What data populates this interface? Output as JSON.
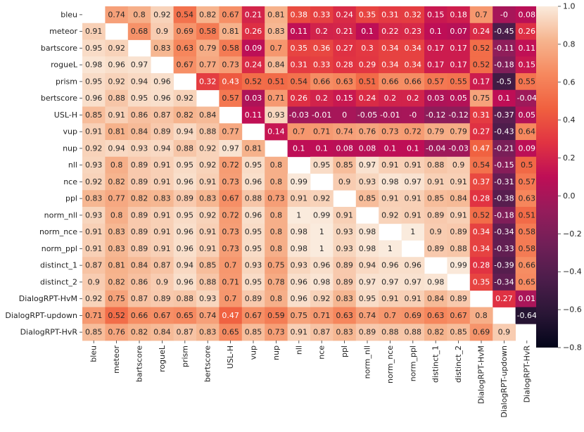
{
  "chart_data": {
    "type": "heatmap",
    "title": "",
    "xlabel": "",
    "ylabel": "",
    "labels": [
      "bleu",
      "meteor",
      "bartscore",
      "rogueL",
      "prism",
      "bertscore",
      "USL-H",
      "vup",
      "nup",
      "nll",
      "nce",
      "ppl",
      "norm_nll",
      "norm_nce",
      "norm_ppl",
      "distinct_1",
      "distinct_2",
      "DialogRPT-HvM",
      "DialogRPT-updown",
      "DialogRPT-HvR"
    ],
    "matrix": [
      [
        null,
        0.74,
        0.8,
        0.92,
        0.54,
        0.82,
        0.67,
        0.21,
        0.81,
        0.38,
        0.33,
        0.24,
        0.35,
        0.31,
        0.32,
        0.15,
        0.18,
        0.7,
        0,
        0.08
      ],
      [
        0.91,
        null,
        0.68,
        0.9,
        0.69,
        0.58,
        0.81,
        0.26,
        0.83,
        0.11,
        0.2,
        0.21,
        0.1,
        0.22,
        0.23,
        0.1,
        0.07,
        0.24,
        -0.45,
        0.26
      ],
      [
        0.95,
        0.92,
        null,
        0.83,
        0.63,
        0.79,
        0.58,
        0.09,
        0.7,
        0.35,
        0.36,
        0.27,
        0.3,
        0.34,
        0.34,
        0.17,
        0.17,
        0.52,
        -0.11,
        0.11
      ],
      [
        0.98,
        0.96,
        0.97,
        null,
        0.67,
        0.77,
        0.73,
        0.24,
        0.84,
        0.31,
        0.33,
        0.28,
        0.29,
        0.34,
        0.34,
        0.17,
        0.17,
        0.52,
        -0.18,
        0.15
      ],
      [
        0.95,
        0.92,
        0.94,
        0.96,
        null,
        0.32,
        0.43,
        0.52,
        0.51,
        0.54,
        0.66,
        0.63,
        0.51,
        0.66,
        0.66,
        0.57,
        0.55,
        0.17,
        -0.5,
        0.55
      ],
      [
        0.96,
        0.88,
        0.95,
        0.96,
        0.92,
        null,
        0.57,
        0.03,
        0.71,
        0.26,
        0.2,
        0.15,
        0.24,
        0.2,
        0.2,
        0.03,
        0.05,
        0.75,
        0.1,
        -0.04
      ],
      [
        0.85,
        0.91,
        0.86,
        0.87,
        0.82,
        0.84,
        null,
        0.11,
        0.93,
        -0.03,
        -0.01,
        0,
        -0.05,
        -0.01,
        0,
        -0.12,
        -0.12,
        0.31,
        -0.37,
        0.05
      ],
      [
        0.91,
        0.81,
        0.84,
        0.89,
        0.94,
        0.88,
        0.77,
        null,
        0.14,
        0.7,
        0.71,
        0.74,
        0.76,
        0.73,
        0.72,
        0.79,
        0.79,
        0.27,
        -0.43,
        0.64
      ],
      [
        0.92,
        0.94,
        0.93,
        0.94,
        0.88,
        0.92,
        0.97,
        0.81,
        null,
        0.1,
        0.1,
        0.08,
        0.08,
        0.1,
        0.1,
        -0.04,
        -0.03,
        0.47,
        -0.21,
        0.09
      ],
      [
        0.93,
        0.8,
        0.89,
        0.91,
        0.95,
        0.92,
        0.72,
        0.95,
        0.8,
        null,
        0.95,
        0.85,
        0.97,
        0.91,
        0.91,
        0.88,
        0.9,
        0.54,
        -0.15,
        0.5
      ],
      [
        0.92,
        0.82,
        0.89,
        0.91,
        0.96,
        0.91,
        0.73,
        0.96,
        0.8,
        0.99,
        null,
        0.9,
        0.93,
        0.98,
        0.97,
        0.91,
        0.91,
        0.37,
        -0.31,
        0.57
      ],
      [
        0.83,
        0.77,
        0.82,
        0.83,
        0.89,
        0.83,
        0.67,
        0.88,
        0.73,
        0.91,
        0.92,
        null,
        0.85,
        0.91,
        0.91,
        0.85,
        0.84,
        0.28,
        -0.38,
        0.63
      ],
      [
        0.93,
        0.8,
        0.89,
        0.91,
        0.95,
        0.92,
        0.72,
        0.96,
        0.8,
        1,
        0.99,
        0.91,
        null,
        0.92,
        0.91,
        0.89,
        0.91,
        0.52,
        -0.18,
        0.51
      ],
      [
        0.91,
        0.83,
        0.89,
        0.91,
        0.96,
        0.91,
        0.73,
        0.95,
        0.8,
        0.98,
        1,
        0.93,
        0.98,
        null,
        1,
        0.9,
        0.89,
        0.34,
        -0.34,
        0.58
      ],
      [
        0.91,
        0.83,
        0.89,
        0.91,
        0.96,
        0.91,
        0.73,
        0.95,
        0.8,
        0.98,
        1,
        0.93,
        0.98,
        1,
        null,
        0.89,
        0.88,
        0.34,
        -0.33,
        0.58
      ],
      [
        0.87,
        0.81,
        0.84,
        0.87,
        0.94,
        0.85,
        0.7,
        0.93,
        0.75,
        0.93,
        0.96,
        0.89,
        0.94,
        0.96,
        0.96,
        null,
        0.99,
        0.28,
        -0.39,
        0.66
      ],
      [
        0.9,
        0.82,
        0.86,
        0.9,
        0.96,
        0.88,
        0.71,
        0.95,
        0.78,
        0.96,
        0.98,
        0.89,
        0.97,
        0.97,
        0.97,
        0.98,
        null,
        0.35,
        -0.34,
        0.65
      ],
      [
        0.92,
        0.75,
        0.87,
        0.89,
        0.88,
        0.93,
        0.7,
        0.89,
        0.8,
        0.96,
        0.92,
        0.83,
        0.95,
        0.91,
        0.91,
        0.84,
        0.89,
        null,
        0.27,
        0.01
      ],
      [
        0.71,
        0.52,
        0.66,
        0.67,
        0.65,
        0.74,
        0.47,
        0.67,
        0.59,
        0.75,
        0.71,
        0.63,
        0.74,
        0.7,
        0.69,
        0.63,
        0.67,
        0.8,
        null,
        -0.64
      ],
      [
        0.85,
        0.76,
        0.82,
        0.84,
        0.87,
        0.83,
        0.65,
        0.85,
        0.73,
        0.91,
        0.87,
        0.83,
        0.89,
        0.88,
        0.88,
        0.82,
        0.85,
        0.69,
        0.9,
        null
      ]
    ],
    "value_labels": [
      [
        null,
        "0.74",
        "0.8",
        "0.92",
        "0.54",
        "0.82",
        "0.67",
        "0.21",
        "0.81",
        "0.38",
        "0.33",
        "0.24",
        "0.35",
        "0.31",
        "0.32",
        "0.15",
        "0.18",
        "0.7",
        "-0",
        "0.08"
      ],
      [
        "0.91",
        null,
        "0.68",
        "0.9",
        "0.69",
        "0.58",
        "0.81",
        "0.26",
        "0.83",
        "0.11",
        "0.2",
        "0.21",
        "0.1",
        "0.22",
        "0.23",
        "0.1",
        "0.07",
        "0.24",
        "-0.45",
        "0.26"
      ],
      [
        "0.95",
        "0.92",
        null,
        "0.83",
        "0.63",
        "0.79",
        "0.58",
        "0.09",
        "0.7",
        "0.35",
        "0.36",
        "0.27",
        "0.3",
        "0.34",
        "0.34",
        "0.17",
        "0.17",
        "0.52",
        "-0.11",
        "0.11"
      ],
      [
        "0.98",
        "0.96",
        "0.97",
        null,
        "0.67",
        "0.77",
        "0.73",
        "0.24",
        "0.84",
        "0.31",
        "0.33",
        "0.28",
        "0.29",
        "0.34",
        "0.34",
        "0.17",
        "0.17",
        "0.52",
        "-0.18",
        "0.15"
      ],
      [
        "0.95",
        "0.92",
        "0.94",
        "0.96",
        null,
        "0.32",
        "0.43",
        "0.52",
        "0.51",
        "0.54",
        "0.66",
        "0.63",
        "0.51",
        "0.66",
        "0.66",
        "0.57",
        "0.55",
        "0.17",
        "-0.5",
        "0.55"
      ],
      [
        "0.96",
        "0.88",
        "0.95",
        "0.96",
        "0.92",
        null,
        "0.57",
        "0.03",
        "0.71",
        "0.26",
        "0.2",
        "0.15",
        "0.24",
        "0.2",
        "0.2",
        "0.03",
        "0.05",
        "0.75",
        "0.1",
        "-0.04"
      ],
      [
        "0.85",
        "0.91",
        "0.86",
        "0.87",
        "0.82",
        "0.84",
        null,
        "0.11",
        "0.93",
        "-0.03",
        "-0.01",
        "0",
        "-0.05",
        "-0.01",
        "-0",
        "-0.12",
        "-0.12",
        "0.31",
        "-0.37",
        "0.05"
      ],
      [
        "0.91",
        "0.81",
        "0.84",
        "0.89",
        "0.94",
        "0.88",
        "0.77",
        null,
        "0.14",
        "0.7",
        "0.71",
        "0.74",
        "0.76",
        "0.73",
        "0.72",
        "0.79",
        "0.79",
        "0.27",
        "-0.43",
        "0.64"
      ],
      [
        "0.92",
        "0.94",
        "0.93",
        "0.94",
        "0.88",
        "0.92",
        "0.97",
        "0.81",
        null,
        "0.1",
        "0.1",
        "0.08",
        "0.08",
        "0.1",
        "0.1",
        "-0.04",
        "-0.03",
        "0.47",
        "-0.21",
        "0.09"
      ],
      [
        "0.93",
        "0.8",
        "0.89",
        "0.91",
        "0.95",
        "0.92",
        "0.72",
        "0.95",
        "0.8",
        null,
        "0.95",
        "0.85",
        "0.97",
        "0.91",
        "0.91",
        "0.88",
        "0.9",
        "0.54",
        "-0.15",
        "0.5"
      ],
      [
        "0.92",
        "0.82",
        "0.89",
        "0.91",
        "0.96",
        "0.91",
        "0.73",
        "0.96",
        "0.8",
        "0.99",
        null,
        "0.9",
        "0.93",
        "0.98",
        "0.97",
        "0.91",
        "0.91",
        "0.37",
        "-0.31",
        "0.57"
      ],
      [
        "0.83",
        "0.77",
        "0.82",
        "0.83",
        "0.89",
        "0.83",
        "0.67",
        "0.88",
        "0.73",
        "0.91",
        "0.92",
        null,
        "0.85",
        "0.91",
        "0.91",
        "0.85",
        "0.84",
        "0.28",
        "-0.38",
        "0.63"
      ],
      [
        "0.93",
        "0.8",
        "0.89",
        "0.91",
        "0.95",
        "0.92",
        "0.72",
        "0.96",
        "0.8",
        "1",
        "0.99",
        "0.91",
        null,
        "0.92",
        "0.91",
        "0.89",
        "0.91",
        "0.52",
        "-0.18",
        "0.51"
      ],
      [
        "0.91",
        "0.83",
        "0.89",
        "0.91",
        "0.96",
        "0.91",
        "0.73",
        "0.95",
        "0.8",
        "0.98",
        "1",
        "0.93",
        "0.98",
        null,
        "1",
        "0.9",
        "0.89",
        "0.34",
        "-0.34",
        "0.58"
      ],
      [
        "0.91",
        "0.83",
        "0.89",
        "0.91",
        "0.96",
        "0.91",
        "0.73",
        "0.95",
        "0.8",
        "0.98",
        "1",
        "0.93",
        "0.98",
        "1",
        null,
        "0.89",
        "0.88",
        "0.34",
        "-0.33",
        "0.58"
      ],
      [
        "0.87",
        "0.81",
        "0.84",
        "0.87",
        "0.94",
        "0.85",
        "0.7",
        "0.93",
        "0.75",
        "0.93",
        "0.96",
        "0.89",
        "0.94",
        "0.96",
        "0.96",
        null,
        "0.99",
        "0.28",
        "-0.39",
        "0.66"
      ],
      [
        "0.9",
        "0.82",
        "0.86",
        "0.9",
        "0.96",
        "0.88",
        "0.71",
        "0.95",
        "0.78",
        "0.96",
        "0.98",
        "0.89",
        "0.97",
        "0.97",
        "0.97",
        "0.98",
        null,
        "0.35",
        "-0.34",
        "0.65"
      ],
      [
        "0.92",
        "0.75",
        "0.87",
        "0.89",
        "0.88",
        "0.93",
        "0.7",
        "0.89",
        "0.8",
        "0.96",
        "0.92",
        "0.83",
        "0.95",
        "0.91",
        "0.91",
        "0.84",
        "0.89",
        null,
        "0.27",
        "0.01"
      ],
      [
        "0.71",
        "0.52",
        "0.66",
        "0.67",
        "0.65",
        "0.74",
        "0.47",
        "0.67",
        "0.59",
        "0.75",
        "0.71",
        "0.63",
        "0.74",
        "0.7",
        "0.69",
        "0.63",
        "0.67",
        "0.8",
        null,
        "-0.64"
      ],
      [
        "0.85",
        "0.76",
        "0.82",
        "0.84",
        "0.87",
        "0.83",
        "0.65",
        "0.85",
        "0.73",
        "0.91",
        "0.87",
        "0.83",
        "0.89",
        "0.88",
        "0.88",
        "0.82",
        "0.85",
        "0.69",
        "0.9",
        null
      ]
    ],
    "colorbar": {
      "vmin": -0.8,
      "vmax": 1.0,
      "ticks": [
        -0.8,
        -0.6,
        -0.4,
        -0.2,
        0.0,
        0.2,
        0.4,
        0.6,
        0.8,
        1.0
      ],
      "tick_labels": [
        "−0.8",
        "−0.6",
        "−0.4",
        "−0.2",
        "0.0",
        "0.2",
        "0.4",
        "0.6",
        "0.8",
        "1.0"
      ],
      "colormap": "rocket",
      "stops": [
        "#03051a",
        "#2a1636",
        "#4c1d4b",
        "#701f57",
        "#951c5b",
        "#be0e56",
        "#e13342",
        "#f0603f",
        "#f6885e",
        "#f6b48e",
        "#faebdd"
      ]
    },
    "grid": false,
    "legend": "colorbar-right"
  }
}
